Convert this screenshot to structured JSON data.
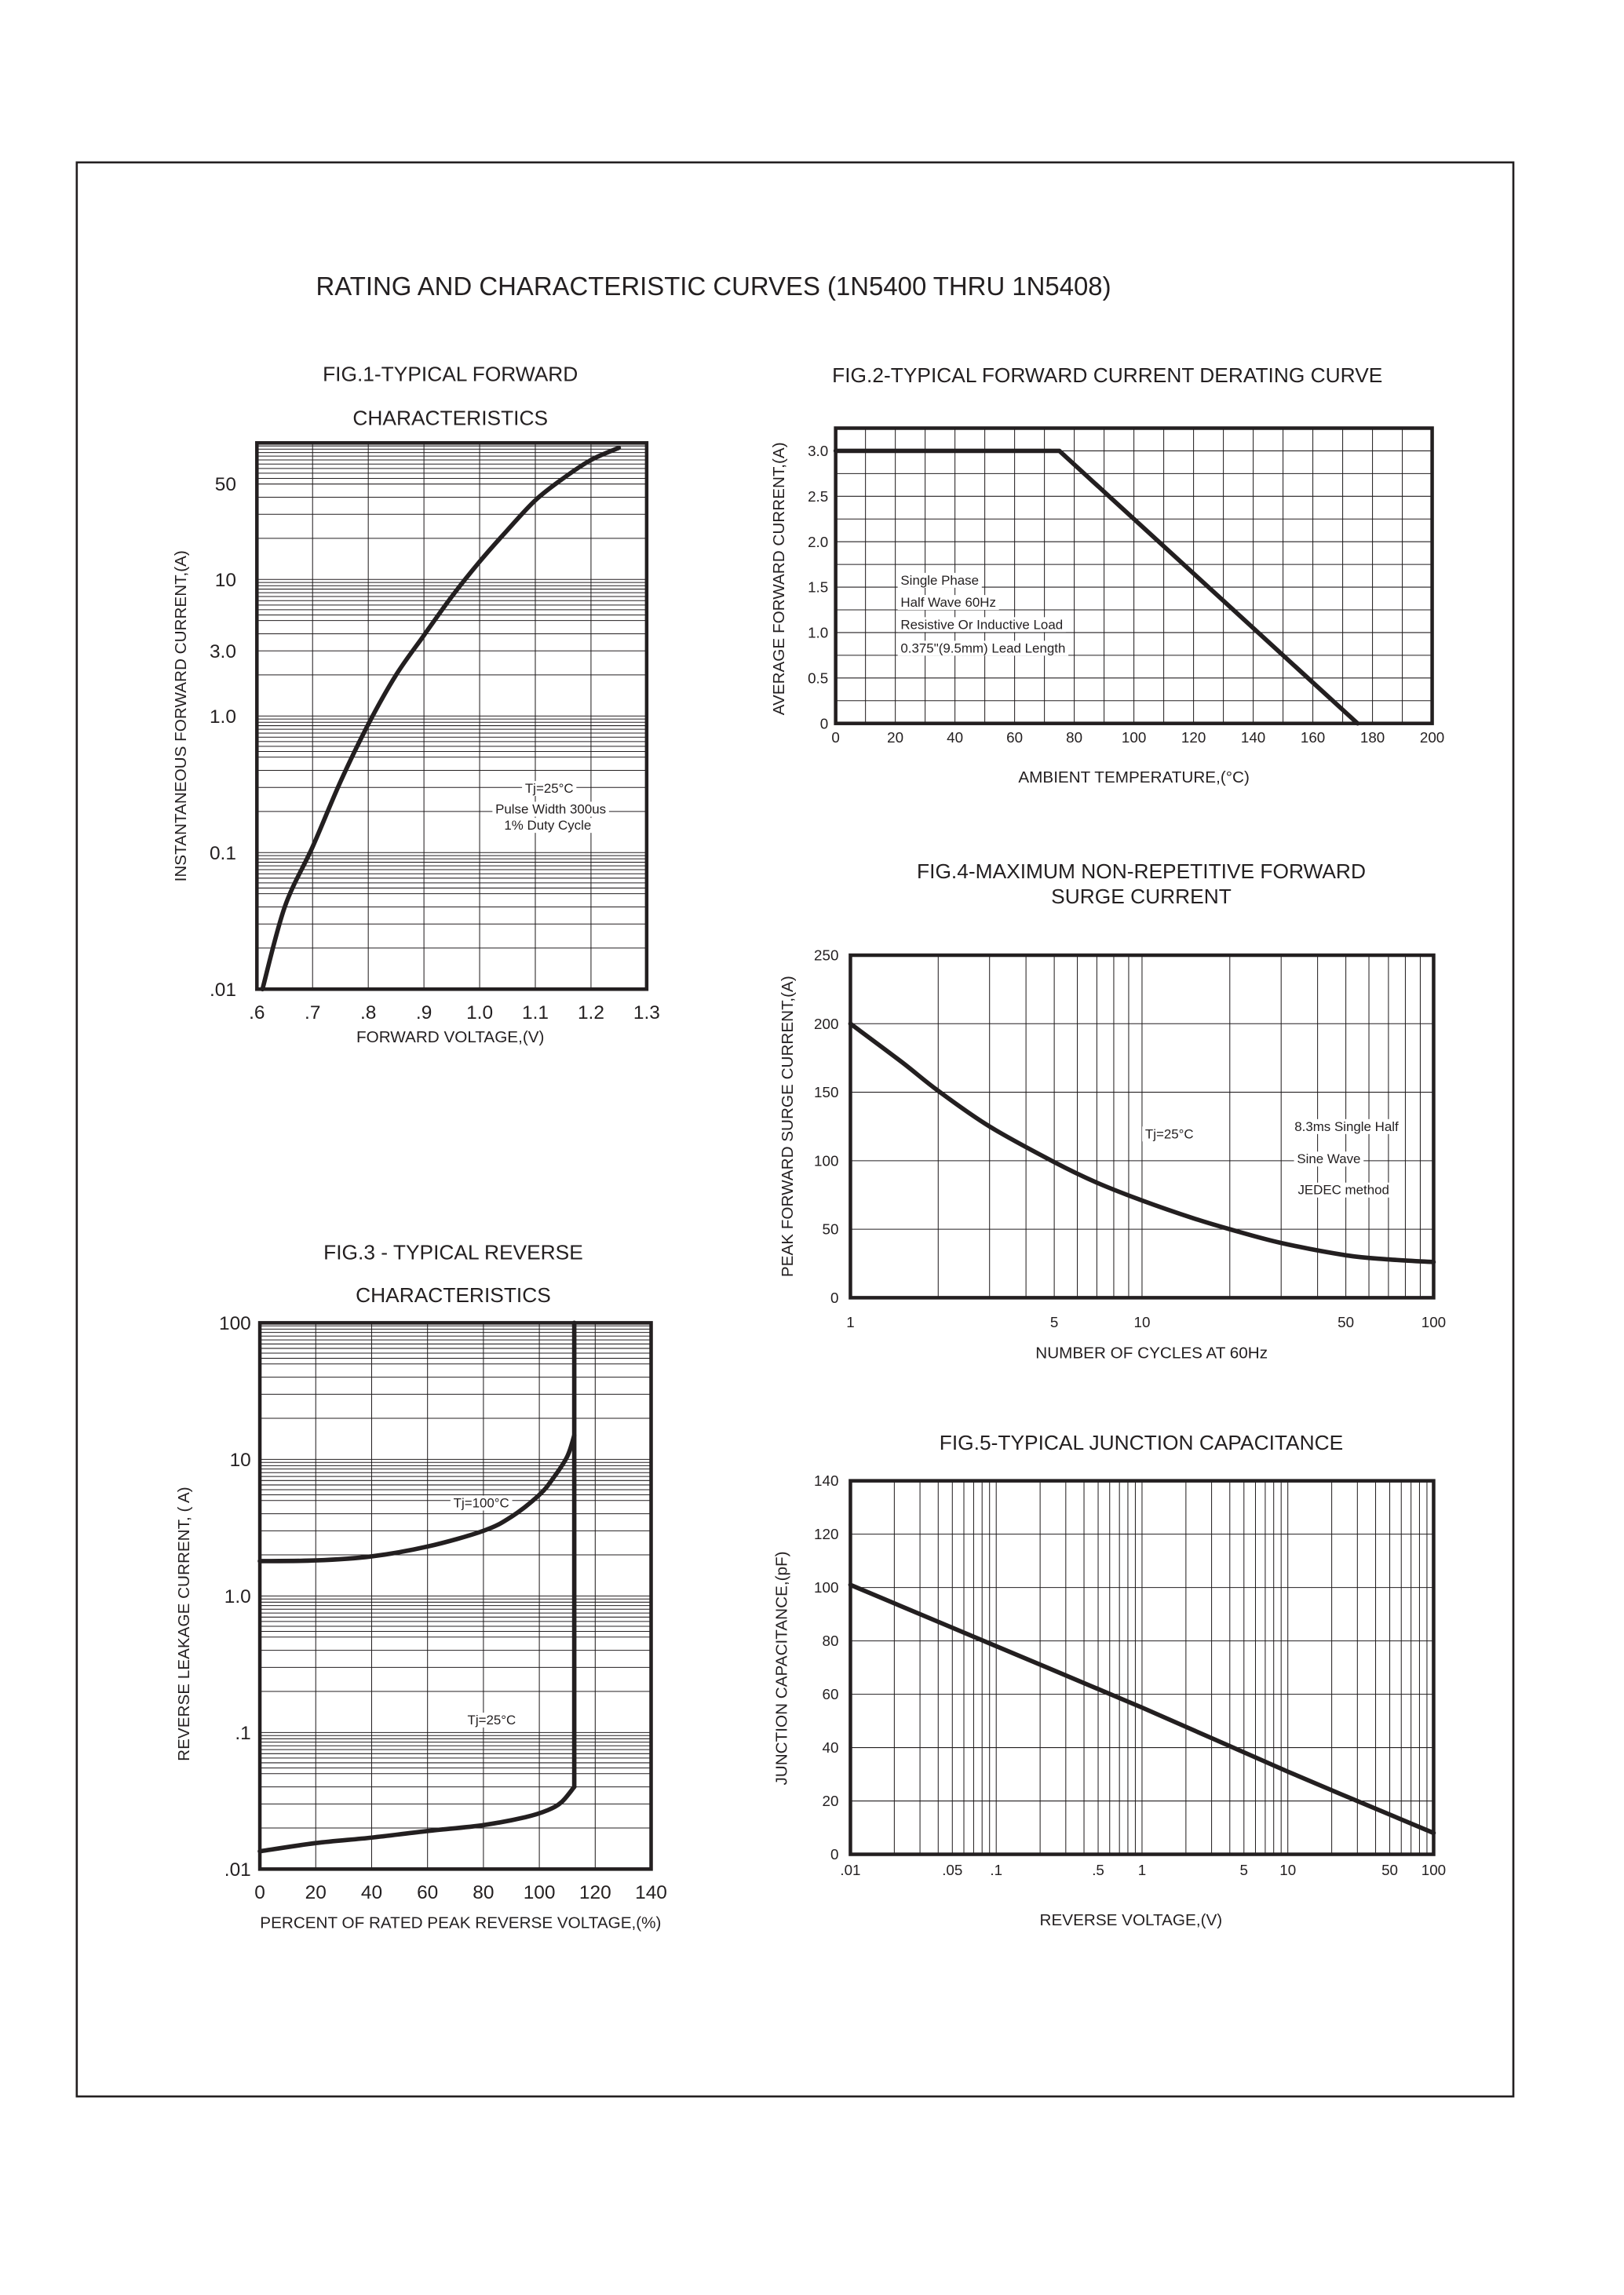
{
  "page": {
    "title": "RATING AND CHARACTERISTIC CURVES (1N5400 THRU 1N5408)",
    "ink_color": "#231f20"
  },
  "chart_data": [
    {
      "type": "line",
      "title": [
        "FIG.1-TYPICAL FORWARD",
        "CHARACTERISTICS"
      ],
      "xlabel": "FORWARD VOLTAGE,(V)",
      "ylabel": "INSTANTANEOUS FORWARD CURRENT,(A)",
      "xscale": "linear",
      "yscale": "log",
      "xlim": [
        0.6,
        1.3
      ],
      "ylim": [
        0.01,
        100
      ],
      "x_grid_step": 0.1,
      "grid": true,
      "xticks": [
        {
          "v": 0.6,
          "label": ".6"
        },
        {
          "v": 0.7,
          "label": ".7"
        },
        {
          "v": 0.8,
          "label": ".8"
        },
        {
          "v": 0.9,
          "label": ".9"
        },
        {
          "v": 1.0,
          "label": "1.0"
        },
        {
          "v": 1.1,
          "label": "1.1"
        },
        {
          "v": 1.2,
          "label": "1.2"
        },
        {
          "v": 1.3,
          "label": "1.3"
        }
      ],
      "yticks": [
        {
          "v": 50,
          "label": "50"
        },
        {
          "v": 10,
          "label": "10"
        },
        {
          "v": 3,
          "label": "3.0"
        },
        {
          "v": 1,
          "label": "1.0"
        },
        {
          "v": 0.1,
          "label": "0.1"
        },
        {
          "v": 0.01,
          "label": ".01"
        }
      ],
      "series": [
        {
          "points": [
            [
              0.61,
              0.01
            ],
            [
              0.65,
              0.04
            ],
            [
              0.7,
              0.11
            ],
            [
              0.75,
              0.33
            ],
            [
              0.8,
              0.87
            ],
            [
              0.85,
              2.0
            ],
            [
              0.9,
              3.9
            ],
            [
              0.95,
              7.5
            ],
            [
              1.0,
              13.5
            ],
            [
              1.05,
              23
            ],
            [
              1.1,
              38
            ],
            [
              1.15,
              55
            ],
            [
              1.2,
              75
            ],
            [
              1.25,
              92
            ]
          ]
        }
      ],
      "annotations": [
        "Tj=25°C",
        "Pulse Width 300us",
        "1% Duty Cycle"
      ]
    },
    {
      "type": "line",
      "title": [
        "FIG.2-TYPICAL FORWARD CURRENT DERATING CURVE"
      ],
      "xlabel": "AMBIENT TEMPERATURE,(°C)",
      "ylabel": "AVERAGE FORWARD CURRENT,(A)",
      "xscale": "linear",
      "yscale": "linear",
      "xlim": [
        0,
        200
      ],
      "ylim": [
        0,
        3.25
      ],
      "x_grid_step": 10,
      "y_grid_step": 0.25,
      "grid": true,
      "xticks": [
        {
          "v": 0,
          "label": "0"
        },
        {
          "v": 20,
          "label": "20"
        },
        {
          "v": 40,
          "label": "40"
        },
        {
          "v": 60,
          "label": "60"
        },
        {
          "v": 80,
          "label": "80"
        },
        {
          "v": 100,
          "label": "100"
        },
        {
          "v": 120,
          "label": "120"
        },
        {
          "v": 140,
          "label": "140"
        },
        {
          "v": 160,
          "label": "160"
        },
        {
          "v": 180,
          "label": "180"
        },
        {
          "v": 200,
          "label": "200"
        }
      ],
      "yticks": [
        {
          "v": 3.0,
          "label": "3.0"
        },
        {
          "v": 2.5,
          "label": "2.5"
        },
        {
          "v": 2.0,
          "label": "2.0"
        },
        {
          "v": 1.5,
          "label": "1.5"
        },
        {
          "v": 1.0,
          "label": "1.0"
        },
        {
          "v": 0.5,
          "label": "0.5"
        },
        {
          "v": 0,
          "label": "0"
        }
      ],
      "series": [
        {
          "points": [
            [
              0,
              3.0
            ],
            [
              75,
              3.0
            ],
            [
              175,
              0
            ]
          ]
        }
      ],
      "annotations": [
        "Single Phase",
        "Half Wave 60Hz",
        "Resistive Or Inductive Load",
        "0.375\"(9.5mm) Lead Length"
      ]
    },
    {
      "type": "line",
      "title": [
        "FIG.3 - TYPICAL REVERSE",
        "CHARACTERISTICS"
      ],
      "xlabel": "PERCENT OF RATED PEAK REVERSE VOLTAGE,(%)",
      "ylabel": "REVERSE LEAKAGE CURRENT, (  A)",
      "xscale": "linear",
      "yscale": "log",
      "xlim": [
        0,
        140
      ],
      "ylim": [
        0.01,
        100
      ],
      "x_grid_step": 20,
      "grid": true,
      "xticks": [
        {
          "v": 0,
          "label": "0"
        },
        {
          "v": 20,
          "label": "20"
        },
        {
          "v": 40,
          "label": "40"
        },
        {
          "v": 60,
          "label": "60"
        },
        {
          "v": 80,
          "label": "80"
        },
        {
          "v": 100,
          "label": "100"
        },
        {
          "v": 120,
          "label": "120"
        },
        {
          "v": 140,
          "label": "140"
        }
      ],
      "yticks": [
        {
          "v": 100,
          "label": "100"
        },
        {
          "v": 10,
          "label": "10"
        },
        {
          "v": 1,
          "label": "1.0"
        },
        {
          "v": 0.1,
          "label": ".1"
        },
        {
          "v": 0.01,
          "label": ".01"
        }
      ],
      "series": [
        {
          "label_ref": 0,
          "points": [
            [
              0,
              1.8
            ],
            [
              20,
              1.82
            ],
            [
              40,
              1.95
            ],
            [
              60,
              2.3
            ],
            [
              80,
              3.0
            ],
            [
              90,
              3.8
            ],
            [
              100,
              5.5
            ],
            [
              105,
              7.3
            ],
            [
              110,
              10.5
            ],
            [
              112.5,
              15
            ]
          ]
        },
        {
          "label_ref": 1,
          "points": [
            [
              0,
              0.0135
            ],
            [
              20,
              0.0155
            ],
            [
              40,
              0.017
            ],
            [
              60,
              0.019
            ],
            [
              80,
              0.021
            ],
            [
              95,
              0.024
            ],
            [
              103,
              0.027
            ],
            [
              108,
              0.031
            ],
            [
              112.5,
              0.04
            ]
          ]
        },
        {
          "points": [
            [
              112.5,
              0.04
            ],
            [
              112.5,
              100
            ]
          ]
        }
      ],
      "annotations": [
        "Tj=100°C",
        "Tj=25°C"
      ]
    },
    {
      "type": "line",
      "title": [
        "FIG.4-MAXIMUM NON-REPETITIVE FORWARD",
        "SURGE CURRENT"
      ],
      "xlabel": "NUMBER OF CYCLES AT 60Hz",
      "ylabel": "PEAK FORWARD SURGE CURRENT,(A)",
      "xscale": "log",
      "yscale": "linear",
      "xlim": [
        1,
        100
      ],
      "ylim": [
        0,
        250
      ],
      "y_grid_step": 50,
      "grid": true,
      "xticks": [
        {
          "v": 1,
          "label": "1"
        },
        {
          "v": 5,
          "label": "5"
        },
        {
          "v": 10,
          "label": "10"
        },
        {
          "v": 50,
          "label": "50"
        },
        {
          "v": 100,
          "label": "100"
        }
      ],
      "yticks": [
        {
          "v": 250,
          "label": "250"
        },
        {
          "v": 200,
          "label": "200"
        },
        {
          "v": 150,
          "label": "150"
        },
        {
          "v": 100,
          "label": "100"
        },
        {
          "v": 50,
          "label": "50"
        },
        {
          "v": 0,
          "label": "0"
        }
      ],
      "series": [
        {
          "points": [
            [
              1,
              200
            ],
            [
              1.5,
              172
            ],
            [
              2,
              151
            ],
            [
              3,
              125
            ],
            [
              5,
              99
            ],
            [
              7,
              84
            ],
            [
              10,
              71
            ],
            [
              15,
              58
            ],
            [
              20,
              50
            ],
            [
              30,
              40
            ],
            [
              50,
              31
            ],
            [
              70,
              28
            ],
            [
              100,
              26
            ]
          ]
        }
      ],
      "annotations": [
        "Tj=25°C",
        "8.3ms Single Half",
        "Sine Wave",
        "JEDEC method"
      ]
    },
    {
      "type": "line",
      "title": [
        "FIG.5-TYPICAL JUNCTION CAPACITANCE"
      ],
      "xlabel": "REVERSE VOLTAGE,(V)",
      "ylabel": "JUNCTION CAPACITANCE,(pF)",
      "xscale": "log",
      "yscale": "linear",
      "xlim": [
        0.01,
        100
      ],
      "ylim": [
        0,
        140
      ],
      "y_grid_step": 20,
      "grid": true,
      "xticks": [
        {
          "v": 0.01,
          "label": ".01"
        },
        {
          "v": 0.05,
          "label": ".05"
        },
        {
          "v": 0.1,
          "label": ".1"
        },
        {
          "v": 0.5,
          "label": ".5"
        },
        {
          "v": 1,
          "label": "1"
        },
        {
          "v": 5,
          "label": "5"
        },
        {
          "v": 10,
          "label": "10"
        },
        {
          "v": 50,
          "label": "50"
        },
        {
          "v": 100,
          "label": "100"
        }
      ],
      "yticks": [
        {
          "v": 140,
          "label": "140"
        },
        {
          "v": 120,
          "label": "120"
        },
        {
          "v": 100,
          "label": "100"
        },
        {
          "v": 80,
          "label": "80"
        },
        {
          "v": 60,
          "label": "60"
        },
        {
          "v": 40,
          "label": "40"
        },
        {
          "v": 20,
          "label": "20"
        },
        {
          "v": 0,
          "label": "0"
        }
      ],
      "series": [
        {
          "points": [
            [
              0.01,
              101
            ],
            [
              0.1,
              78
            ],
            [
              1,
              55
            ],
            [
              10,
              31
            ],
            [
              100,
              8
            ]
          ]
        }
      ],
      "annotations": []
    }
  ]
}
